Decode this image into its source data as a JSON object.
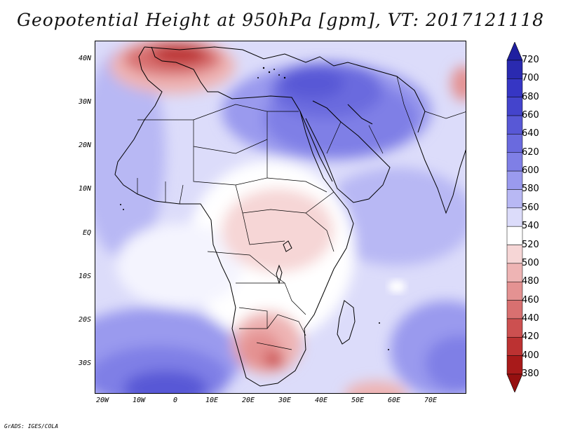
{
  "title": "Geopotential Height at 950hPa [gpm], VT: 2017121118",
  "credit": "GrADS: IGES/COLA",
  "map": {
    "lon_range": [
      -22,
      80
    ],
    "lat_range": [
      -37,
      45
    ],
    "lat_labels": [
      {
        "text": "40N",
        "lat": 40
      },
      {
        "text": "30N",
        "lat": 30
      },
      {
        "text": "20N",
        "lat": 20
      },
      {
        "text": "10N",
        "lat": 10
      },
      {
        "text": "EQ",
        "lat": 0
      },
      {
        "text": "10S",
        "lat": -10
      },
      {
        "text": "20S",
        "lat": -20
      },
      {
        "text": "30S",
        "lat": -30
      }
    ],
    "lon_labels": [
      {
        "text": "20W",
        "lon": -20
      },
      {
        "text": "10W",
        "lon": -10
      },
      {
        "text": "0",
        "lon": 0
      },
      {
        "text": "10E",
        "lon": 10
      },
      {
        "text": "20E",
        "lon": 20
      },
      {
        "text": "30E",
        "lon": 30
      },
      {
        "text": "40E",
        "lon": 40
      },
      {
        "text": "50E",
        "lon": 50
      },
      {
        "text": "60E",
        "lon": 60
      },
      {
        "text": "70E",
        "lon": 70
      }
    ]
  },
  "colorbar": {
    "levels": [
      720,
      700,
      680,
      660,
      640,
      620,
      600,
      580,
      560,
      540,
      520,
      500,
      480,
      460,
      440,
      420,
      400,
      380
    ],
    "colors": [
      "#1f1fa0",
      "#2a2ab0",
      "#3636c4",
      "#4444cc",
      "#5858d6",
      "#6a6ade",
      "#7f7fe6",
      "#9a9aee",
      "#b8b8f4",
      "#dcdcfa",
      "#ffffff",
      "#f6d6d6",
      "#eeb4b4",
      "#e49292",
      "#d87070",
      "#cc5050",
      "#bc3232",
      "#a81a1a",
      "#961010"
    ]
  }
}
